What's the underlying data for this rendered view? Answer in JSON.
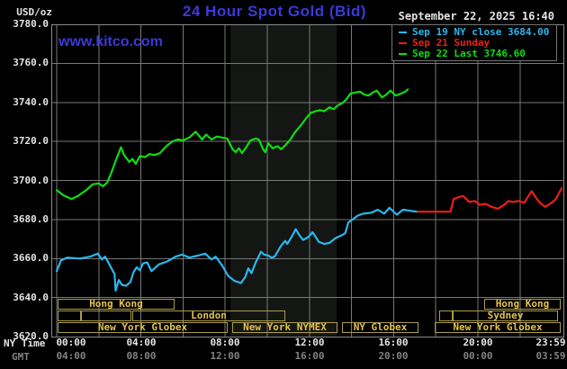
{
  "header": {
    "unit_label": "USD/oz",
    "title": "24 Hour Spot Gold (Bid)",
    "datetime": "September 22, 2025 16:40",
    "watermark": "www.kitco.com"
  },
  "colors": {
    "background": "#000000",
    "grid": "#787878",
    "border": "#8a8a8a",
    "nymex_band": "#131613",
    "title_blue": "#3a3ad8",
    "text_white": "#e4e4e4",
    "text_gray": "#828282",
    "session_border": "#ab9c4e",
    "session_text": "#e2c34d",
    "sep19_cyan": "#2ab7ee",
    "sep21_red": "#ee1d16",
    "sep22_green": "#10dc10"
  },
  "legend": [
    {
      "label": "Sep 19 NY close 3684.00",
      "color": "#2ab7ee"
    },
    {
      "label": "Sep 21 Sunday",
      "color": "#ee1d16"
    },
    {
      "label": "Sep 22 Last 3746.60",
      "color": "#10dc10"
    }
  ],
  "axes": {
    "x_ny_label": "NY Time",
    "x_gmt_label": "GMT",
    "tick_hours": [
      0,
      4,
      8,
      12,
      16,
      20,
      23.983
    ],
    "ny_ticks": [
      "00:00",
      "04:00",
      "08:00",
      "12:00",
      "16:00",
      "20:00",
      "23:59"
    ],
    "gmt_ticks": [
      "04:00",
      "08:00",
      "12:00",
      "16:00",
      "20:00",
      "00:00",
      "03:59"
    ],
    "y_ticks": [
      "3780.0",
      "3760.0",
      "3740.0",
      "3720.0",
      "3700.0",
      "3680.0",
      "3660.0",
      "3640.0",
      "3620.0"
    ]
  },
  "sessions": {
    "rows": [
      {
        "boxes": [
          {
            "label": "Hong Kong",
            "start": 0.05,
            "end": 5.6
          },
          {
            "label": "Hong Kong",
            "start": 20.3,
            "end": 23.93
          }
        ]
      },
      {
        "boxes": [
          {
            "label": "",
            "start": 0.05,
            "end": 1.17
          },
          {
            "label": "",
            "start": 1.17,
            "end": 3.57
          },
          {
            "label": "London",
            "start": 3.57,
            "end": 10.84
          },
          {
            "label": "",
            "start": 18.16,
            "end": 18.8
          },
          {
            "label": "Sydney",
            "start": 18.8,
            "end": 23.82
          }
        ]
      },
      {
        "boxes": [
          {
            "label": "New York Globex",
            "start": 0.05,
            "end": 8.12
          },
          {
            "label": "New York NYMEX",
            "start": 8.33,
            "end": 13.33
          },
          {
            "label": "NY Globex",
            "start": 13.55,
            "end": 17.18
          },
          {
            "label": "New York Globex",
            "start": 17.95,
            "end": 23.93
          }
        ]
      }
    ]
  },
  "chart_data": {
    "type": "line",
    "title": "24 Hour Spot Gold (Bid)",
    "ylabel": "USD/oz",
    "ylim": [
      3620,
      3780
    ],
    "y_tick_step": 20,
    "x_unit": "hours_ny_time",
    "xlim": [
      0,
      23.983
    ],
    "grid": true,
    "legend_position": "top-right",
    "highlight_band_hours": [
      8.25,
      13.3
    ],
    "series": [
      {
        "name": "Sep 19 NY close 3684.00",
        "color": "#2ab7ee",
        "points": [
          [
            0,
            3653.5
          ],
          [
            0.2,
            3659
          ],
          [
            0.5,
            3660.5
          ],
          [
            1.1,
            3660
          ],
          [
            1.6,
            3661
          ],
          [
            1.95,
            3662.5
          ],
          [
            2.15,
            3659.5
          ],
          [
            2.3,
            3661
          ],
          [
            2.5,
            3657
          ],
          [
            2.75,
            3652
          ],
          [
            2.8,
            3643.5
          ],
          [
            2.95,
            3649
          ],
          [
            3.1,
            3646.5
          ],
          [
            3.3,
            3646
          ],
          [
            3.5,
            3648
          ],
          [
            3.65,
            3653
          ],
          [
            3.8,
            3655.5
          ],
          [
            3.95,
            3654
          ],
          [
            4.1,
            3657.5
          ],
          [
            4.3,
            3658
          ],
          [
            4.5,
            3653.5
          ],
          [
            4.85,
            3657
          ],
          [
            5.25,
            3658.5
          ],
          [
            5.65,
            3661
          ],
          [
            5.95,
            3662
          ],
          [
            6.3,
            3660.5
          ],
          [
            6.7,
            3661.5
          ],
          [
            7.05,
            3662.5
          ],
          [
            7.35,
            3659.5
          ],
          [
            7.55,
            3661
          ],
          [
            7.85,
            3656.5
          ],
          [
            8.15,
            3651
          ],
          [
            8.45,
            3648.5
          ],
          [
            8.75,
            3647.5
          ],
          [
            8.95,
            3650.5
          ],
          [
            9.1,
            3655
          ],
          [
            9.25,
            3652.5
          ],
          [
            9.45,
            3658
          ],
          [
            9.7,
            3663.5
          ],
          [
            9.85,
            3662
          ],
          [
            10.05,
            3661.5
          ],
          [
            10.2,
            3660.5
          ],
          [
            10.35,
            3661
          ],
          [
            10.65,
            3666.5
          ],
          [
            10.85,
            3669
          ],
          [
            10.95,
            3667.5
          ],
          [
            11.15,
            3671
          ],
          [
            11.35,
            3675
          ],
          [
            11.55,
            3671.5
          ],
          [
            11.7,
            3669.5
          ],
          [
            11.95,
            3671
          ],
          [
            12.15,
            3673.5
          ],
          [
            12.45,
            3668.5
          ],
          [
            12.7,
            3667.5
          ],
          [
            12.95,
            3668
          ],
          [
            13.25,
            3670.5
          ],
          [
            13.55,
            3672
          ],
          [
            13.7,
            3673
          ],
          [
            13.85,
            3678.5
          ],
          [
            14.05,
            3680
          ],
          [
            14.3,
            3682
          ],
          [
            14.55,
            3683
          ],
          [
            14.95,
            3683.5
          ],
          [
            15.25,
            3685
          ],
          [
            15.55,
            3683
          ],
          [
            15.8,
            3686
          ],
          [
            16.15,
            3682.5
          ],
          [
            16.45,
            3685
          ],
          [
            16.75,
            3684.5
          ],
          [
            17.1,
            3684
          ]
        ]
      },
      {
        "name": "Sep 21 Sunday",
        "color": "#ee1d16",
        "points": [
          [
            17.15,
            3684
          ],
          [
            18.7,
            3684
          ],
          [
            18.85,
            3690.5
          ],
          [
            19.1,
            3691.5
          ],
          [
            19.3,
            3692
          ],
          [
            19.6,
            3689
          ],
          [
            19.85,
            3689.5
          ],
          [
            20.1,
            3687.5
          ],
          [
            20.35,
            3688
          ],
          [
            20.65,
            3686.5
          ],
          [
            20.95,
            3685.5
          ],
          [
            21.25,
            3687.5
          ],
          [
            21.45,
            3689.5
          ],
          [
            21.65,
            3689
          ],
          [
            21.95,
            3689.5
          ],
          [
            22.2,
            3688.5
          ],
          [
            22.4,
            3692
          ],
          [
            22.55,
            3694.5
          ],
          [
            22.8,
            3690.5
          ],
          [
            23,
            3688
          ],
          [
            23.2,
            3686.5
          ],
          [
            23.35,
            3687.5
          ],
          [
            23.55,
            3689
          ],
          [
            23.7,
            3690.5
          ],
          [
            23.85,
            3693.5
          ],
          [
            23.98,
            3696
          ]
        ]
      },
      {
        "name": "Sep 22 Last 3746.60",
        "color": "#10dc10",
        "points": [
          [
            0,
            3695
          ],
          [
            0.3,
            3692.5
          ],
          [
            0.7,
            3690.5
          ],
          [
            1,
            3692
          ],
          [
            1.4,
            3695
          ],
          [
            1.7,
            3698
          ],
          [
            2,
            3698.5
          ],
          [
            2.2,
            3697
          ],
          [
            2.4,
            3699
          ],
          [
            2.6,
            3704
          ],
          [
            2.8,
            3710
          ],
          [
            3.05,
            3717
          ],
          [
            3.2,
            3713
          ],
          [
            3.45,
            3709.5
          ],
          [
            3.6,
            3711
          ],
          [
            3.75,
            3708.5
          ],
          [
            3.95,
            3712.5
          ],
          [
            4.2,
            3712
          ],
          [
            4.4,
            3713.5
          ],
          [
            4.65,
            3713
          ],
          [
            4.9,
            3714
          ],
          [
            5.2,
            3717.5
          ],
          [
            5.5,
            3720
          ],
          [
            5.75,
            3721
          ],
          [
            6,
            3720.5
          ],
          [
            6.3,
            3722
          ],
          [
            6.6,
            3725
          ],
          [
            6.9,
            3721
          ],
          [
            7.1,
            3723.5
          ],
          [
            7.35,
            3721
          ],
          [
            7.6,
            3722.5
          ],
          [
            7.85,
            3722
          ],
          [
            8.1,
            3721.5
          ],
          [
            8.35,
            3716
          ],
          [
            8.5,
            3714.5
          ],
          [
            8.65,
            3716.5
          ],
          [
            8.8,
            3714
          ],
          [
            9,
            3717
          ],
          [
            9.2,
            3720.5
          ],
          [
            9.45,
            3721.5
          ],
          [
            9.6,
            3721
          ],
          [
            9.8,
            3716
          ],
          [
            9.9,
            3714.5
          ],
          [
            10.05,
            3719
          ],
          [
            10.25,
            3716.5
          ],
          [
            10.5,
            3717.5
          ],
          [
            10.65,
            3716
          ],
          [
            10.85,
            3718
          ],
          [
            11.1,
            3721
          ],
          [
            11.3,
            3724.5
          ],
          [
            11.5,
            3727
          ],
          [
            11.65,
            3729
          ],
          [
            11.85,
            3732
          ],
          [
            12.05,
            3734.5
          ],
          [
            12.3,
            3735.5
          ],
          [
            12.5,
            3736
          ],
          [
            12.7,
            3735.5
          ],
          [
            12.95,
            3737.5
          ],
          [
            13.15,
            3736.5
          ],
          [
            13.35,
            3738.5
          ],
          [
            13.55,
            3739.5
          ],
          [
            13.75,
            3741.5
          ],
          [
            13.95,
            3744.5
          ],
          [
            14.15,
            3745
          ],
          [
            14.4,
            3745.5
          ],
          [
            14.6,
            3744
          ],
          [
            14.8,
            3743.5
          ],
          [
            15,
            3745
          ],
          [
            15.2,
            3746
          ],
          [
            15.45,
            3742.5
          ],
          [
            15.65,
            3744
          ],
          [
            15.85,
            3746
          ],
          [
            16.1,
            3743.5
          ],
          [
            16.35,
            3744.5
          ],
          [
            16.55,
            3745.5
          ],
          [
            16.67,
            3746.6
          ]
        ]
      }
    ]
  }
}
